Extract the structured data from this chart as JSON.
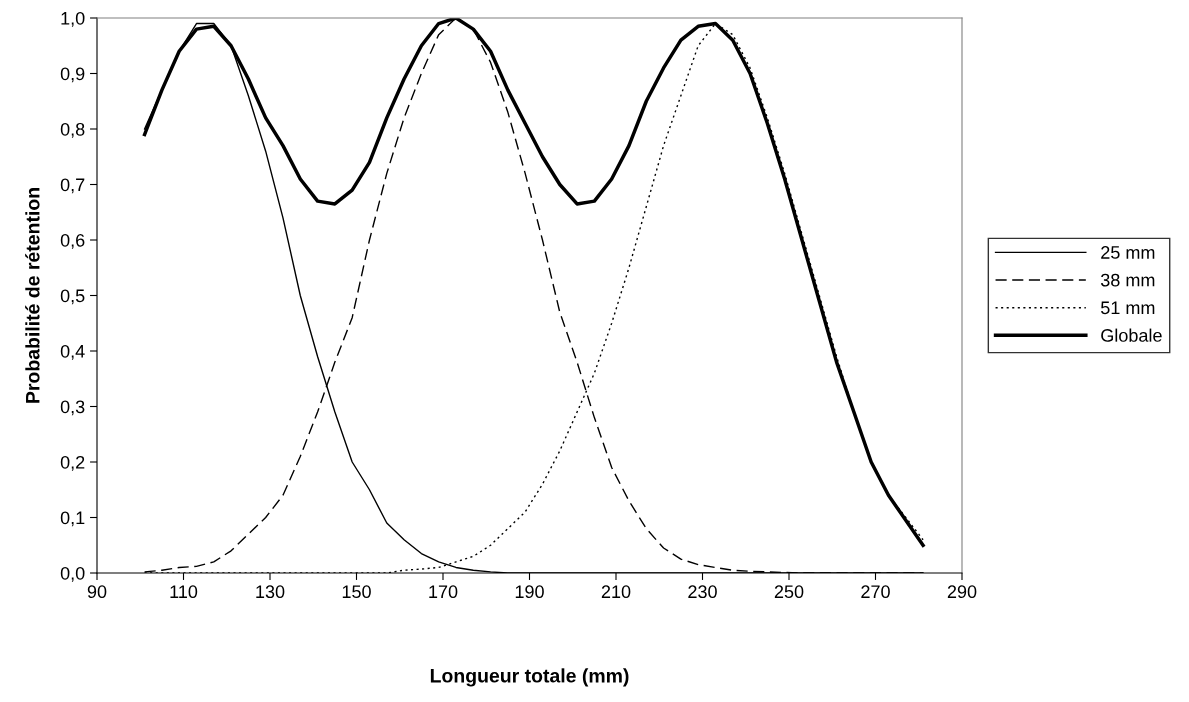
{
  "chart_data": {
    "type": "line",
    "xlabel": "Longueur totale (mm)",
    "ylabel": "Probabilité de rétention",
    "x": [
      101,
      105,
      109,
      113,
      117,
      121,
      125,
      129,
      133,
      137,
      141,
      145,
      149,
      153,
      157,
      161,
      165,
      169,
      173,
      177,
      181,
      185,
      189,
      193,
      197,
      201,
      205,
      209,
      213,
      217,
      221,
      225,
      229,
      233,
      237,
      241,
      245,
      249,
      253,
      257,
      261,
      265,
      269,
      273,
      277,
      281
    ],
    "series": [
      {
        "name": "25 mm",
        "color": "#000000",
        "line_style": "solid",
        "values": [
          0.8,
          0.87,
          0.94,
          0.99,
          0.99,
          0.95,
          0.86,
          0.76,
          0.64,
          0.5,
          0.39,
          0.29,
          0.2,
          0.15,
          0.09,
          0.06,
          0.035,
          0.02,
          0.01,
          0.005,
          0.002,
          0,
          0,
          0,
          0,
          0,
          0,
          0,
          0,
          0,
          0,
          0,
          0,
          0,
          0,
          0,
          0,
          0,
          0,
          0,
          0,
          0,
          0,
          0,
          0,
          0
        ]
      },
      {
        "name": "38 mm",
        "color": "#000000",
        "line_style": "dashed",
        "values": [
          0.002,
          0.005,
          0.01,
          0.012,
          0.02,
          0.04,
          0.07,
          0.1,
          0.14,
          0.21,
          0.29,
          0.38,
          0.46,
          0.6,
          0.72,
          0.82,
          0.9,
          0.97,
          1.0,
          0.98,
          0.92,
          0.83,
          0.72,
          0.6,
          0.47,
          0.38,
          0.28,
          0.19,
          0.13,
          0.08,
          0.045,
          0.025,
          0.015,
          0.01,
          0.005,
          0.003,
          0.002,
          0.001,
          0,
          0,
          0,
          0,
          0,
          0,
          0,
          0
        ]
      },
      {
        "name": "51 mm",
        "color": "#000000",
        "line_style": "dotted",
        "values": [
          0,
          0,
          0,
          0,
          0,
          0,
          0,
          0,
          0,
          0,
          0,
          0,
          0,
          0,
          0,
          0.005,
          0.007,
          0.01,
          0.02,
          0.03,
          0.05,
          0.08,
          0.11,
          0.16,
          0.22,
          0.29,
          0.36,
          0.45,
          0.55,
          0.66,
          0.77,
          0.86,
          0.95,
          0.99,
          0.97,
          0.91,
          0.82,
          0.72,
          0.61,
          0.5,
          0.39,
          0.29,
          0.2,
          0.14,
          0.1,
          0.06
        ]
      },
      {
        "name": "Globale",
        "color": "#000000",
        "line_style": "solid",
        "values": [
          0.79,
          0.87,
          0.94,
          0.98,
          0.985,
          0.95,
          0.89,
          0.82,
          0.77,
          0.71,
          0.67,
          0.665,
          0.69,
          0.74,
          0.82,
          0.89,
          0.95,
          0.99,
          1.0,
          0.98,
          0.94,
          0.87,
          0.81,
          0.75,
          0.7,
          0.665,
          0.67,
          0.71,
          0.77,
          0.85,
          0.91,
          0.96,
          0.985,
          0.99,
          0.96,
          0.9,
          0.81,
          0.71,
          0.6,
          0.49,
          0.38,
          0.29,
          0.2,
          0.14,
          0.095,
          0.05
        ]
      }
    ],
    "xlim": [
      90,
      290
    ],
    "xticks": [
      90,
      110,
      130,
      150,
      170,
      190,
      210,
      230,
      250,
      270,
      290
    ],
    "ylim": [
      0,
      1
    ],
    "yticks": [
      {
        "value": 0,
        "label": "0,0"
      },
      {
        "value": 0.1,
        "label": "0,1"
      },
      {
        "value": 0.2,
        "label": "0,2"
      },
      {
        "value": 0.3,
        "label": "0,3"
      },
      {
        "value": 0.4,
        "label": "0,4"
      },
      {
        "value": 0.5,
        "label": "0,5"
      },
      {
        "value": 0.6,
        "label": "0,6"
      },
      {
        "value": 0.7,
        "label": "0,7"
      },
      {
        "value": 0.8,
        "label": "0,8"
      },
      {
        "value": 0.9,
        "label": "0,9"
      },
      {
        "value": 1.0,
        "label": "1,0"
      }
    ],
    "grid": false,
    "legend": "right",
    "marker": "none"
  }
}
